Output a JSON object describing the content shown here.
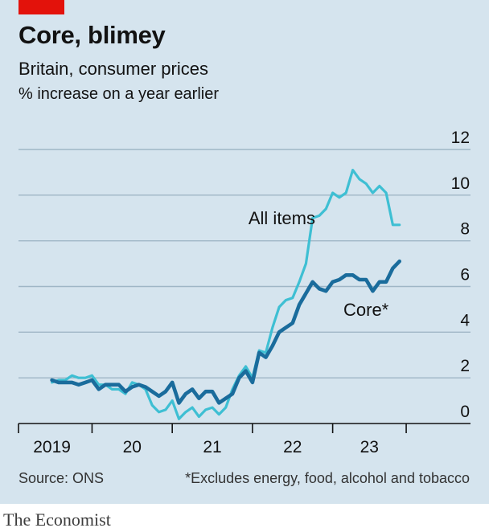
{
  "header": {
    "title": "Core, blimey",
    "subtitle": "Britain, consumer prices",
    "unit": "% increase on a year earlier"
  },
  "footer": {
    "source": "Source: ONS",
    "note": "*Excludes energy, food, alcohol and tobacco",
    "brand": "The Economist"
  },
  "colors": {
    "background": "#d5e4ee",
    "all_items": "#3ebfd3",
    "core": "#1a6c9c",
    "grid": "#9fb6c6",
    "axis": "#121212",
    "brand_red": "#e3120b"
  },
  "chart_data": {
    "type": "line",
    "ylim": [
      0,
      12
    ],
    "yticks": [
      0,
      2,
      4,
      6,
      8,
      10,
      12
    ],
    "xlim": [
      2018.583,
      2023.667
    ],
    "xtick_boundaries": [
      2018.583,
      2019.5,
      2020.5,
      2021.5,
      2022.5,
      2023.417
    ],
    "xtick_labels": [
      {
        "label": "2019",
        "at": 2019.0
      },
      {
        "label": "20",
        "at": 2020.0
      },
      {
        "label": "21",
        "at": 2021.0
      },
      {
        "label": "22",
        "at": 2022.0
      },
      {
        "label": "23",
        "at": 2022.958
      }
    ],
    "grid": true,
    "y_axis_side": "right",
    "series": [
      {
        "name": "All items",
        "key": "all_items",
        "label_text": "All items",
        "values": [
          1.8,
          1.9,
          1.9,
          2.1,
          2.0,
          2.0,
          2.1,
          1.7,
          1.7,
          1.5,
          1.5,
          1.3,
          1.8,
          1.7,
          1.5,
          0.8,
          0.5,
          0.6,
          1.0,
          0.2,
          0.5,
          0.7,
          0.3,
          0.6,
          0.7,
          0.4,
          0.7,
          1.5,
          2.1,
          2.5,
          2.0,
          3.2,
          3.1,
          4.2,
          5.1,
          5.4,
          5.5,
          6.2,
          7.0,
          9.0,
          9.1,
          9.4,
          10.1,
          9.9,
          10.1,
          11.1,
          10.7,
          10.5,
          10.1,
          10.4,
          10.1,
          8.7,
          8.7
        ],
        "start": [
          2019,
          1
        ]
      },
      {
        "name": "Core*",
        "key": "core",
        "label_text": "Core*",
        "values": [
          1.9,
          1.8,
          1.8,
          1.8,
          1.7,
          1.8,
          1.9,
          1.5,
          1.7,
          1.7,
          1.7,
          1.4,
          1.6,
          1.7,
          1.6,
          1.4,
          1.2,
          1.4,
          1.8,
          0.9,
          1.3,
          1.5,
          1.1,
          1.4,
          1.4,
          0.9,
          1.1,
          1.3,
          2.0,
          2.3,
          1.8,
          3.1,
          2.9,
          3.4,
          4.0,
          4.2,
          4.4,
          5.2,
          5.7,
          6.2,
          5.9,
          5.8,
          6.2,
          6.3,
          6.5,
          6.5,
          6.3,
          6.3,
          5.8,
          6.2,
          6.2,
          6.8,
          7.1
        ],
        "start": [
          2019,
          1
        ]
      }
    ]
  }
}
